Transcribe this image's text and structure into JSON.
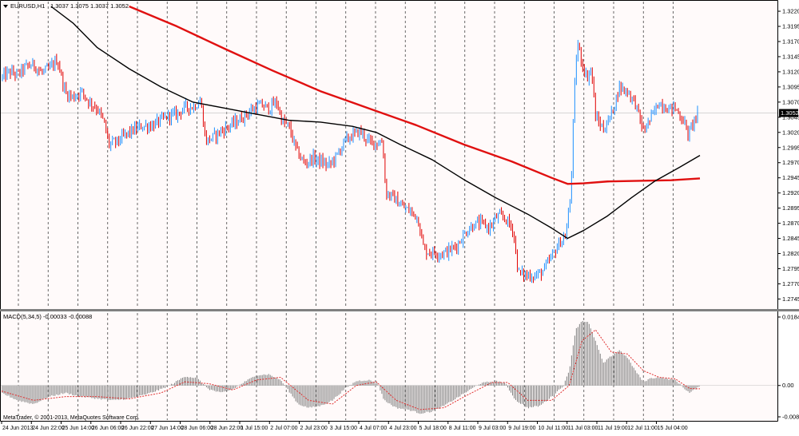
{
  "header": {
    "symbol_label": "EURUSD,H1",
    "ohlc": "1.3037 1.3075 1.3037 1.3052"
  },
  "macd_panel": {
    "label": "MACD(5,34,5) -0.00033 -0.00088"
  },
  "footer": {
    "copyright": "MetaTrader, © 2001-2013, MetaQuotes Software Corp."
  },
  "colors": {
    "background": "#ffffff",
    "price_area": "#fffafa",
    "bull_candle": "#1e90ff",
    "bear_candle": "#e00000",
    "ma_slow": "#e01010",
    "ma_fast": "#000000",
    "macd_histogram": "#808080",
    "macd_signal": "#e03030",
    "grid": "#444444",
    "current_price_box": "#000000"
  },
  "chart_data": [
    {
      "type": "candlestick",
      "symbol": "EURUSD",
      "timeframe": "H1",
      "current_price": 1.3052,
      "y_ticks": [
        "1.3220",
        "1.3195",
        "1.3170",
        "1.3145",
        "1.3120",
        "1.3095",
        "1.3070",
        "1.3045",
        "1.3020",
        "1.2995",
        "1.2970",
        "1.2945",
        "1.2920",
        "1.2895",
        "1.2870",
        "1.2845",
        "1.2820",
        "1.2795",
        "1.2770",
        "1.2745"
      ],
      "ylim": [
        1.2735,
        1.3228
      ],
      "grid_vertical": true,
      "x_ticks": [
        "24 Jun 2013",
        "24 Jun 22:00",
        "25 Jun 14:00",
        "26 Jun 06:00",
        "26 Jun 22:00",
        "27 Jun 14:00",
        "28 Jun 06:00",
        "28 Jun 22:00",
        "1 Jul 15:00",
        "2 Jul 07:00",
        "2 Jul 23:00",
        "3 Jul 15:00",
        "4 Jul 07:00",
        "4 Jul 23:00",
        "5 Jul 18:00",
        "8 Jul 11:00",
        "9 Jul 03:00",
        "9 Jul 19:00",
        "10 Jul 11:00",
        "11 Jul 03:00",
        "11 Jul 19:00",
        "12 Jul 11:00",
        "15 Jul 04:00"
      ],
      "close_path": [
        [
          0,
          1.311
        ],
        [
          10,
          1.312
        ],
        [
          20,
          1.3115
        ],
        [
          30,
          1.3128
        ],
        [
          40,
          1.3132
        ],
        [
          50,
          1.3118
        ],
        [
          60,
          1.3125
        ],
        [
          70,
          1.314
        ],
        [
          80,
          1.3085
        ],
        [
          90,
          1.3078
        ],
        [
          100,
          1.3088
        ],
        [
          110,
          1.307
        ],
        [
          120,
          1.306
        ],
        [
          128,
          1.3038
        ],
        [
          135,
          1.3
        ],
        [
          145,
          1.3005
        ],
        [
          160,
          1.302
        ],
        [
          175,
          1.303
        ],
        [
          190,
          1.3032
        ],
        [
          200,
          1.304
        ],
        [
          210,
          1.3048
        ],
        [
          220,
          1.305
        ],
        [
          230,
          1.3062
        ],
        [
          240,
          1.3062
        ],
        [
          250,
          1.3072
        ],
        [
          256,
          1.3005
        ],
        [
          265,
          1.3012
        ],
        [
          275,
          1.3022
        ],
        [
          285,
          1.303
        ],
        [
          295,
          1.3038
        ],
        [
          305,
          1.3048
        ],
        [
          315,
          1.3058
        ],
        [
          325,
          1.3065
        ],
        [
          335,
          1.306
        ],
        [
          345,
          1.307
        ],
        [
          352,
          1.3038
        ],
        [
          360,
          1.303
        ],
        [
          370,
          1.299
        ],
        [
          380,
          1.2968
        ],
        [
          390,
          1.2978
        ],
        [
          400,
          1.2972
        ],
        [
          410,
          1.2965
        ],
        [
          420,
          1.298
        ],
        [
          430,
          1.3005
        ],
        [
          440,
          1.3015
        ],
        [
          450,
          1.3022
        ],
        [
          460,
          1.3005
        ],
        [
          470,
          1.3002
        ],
        [
          478,
          1.3005
        ],
        [
          482,
          1.292
        ],
        [
          492,
          1.2912
        ],
        [
          502,
          1.2898
        ],
        [
          512,
          1.289
        ],
        [
          522,
          1.288
        ],
        [
          530,
          1.2825
        ],
        [
          540,
          1.2822
        ],
        [
          552,
          1.282
        ],
        [
          562,
          1.2825
        ],
        [
          572,
          1.2835
        ],
        [
          582,
          1.2855
        ],
        [
          592,
          1.2868
        ],
        [
          602,
          1.287
        ],
        [
          612,
          1.2862
        ],
        [
          622,
          1.2882
        ],
        [
          632,
          1.2878
        ],
        [
          642,
          1.2858
        ],
        [
          648,
          1.2788
        ],
        [
          658,
          1.2784
        ],
        [
          670,
          1.2783
        ],
        [
          680,
          1.2792
        ],
        [
          690,
          1.2815
        ],
        [
          700,
          1.2838
        ],
        [
          708,
          1.285
        ],
        [
          714,
          1.292
        ],
        [
          718,
          1.307
        ],
        [
          722,
          1.317
        ],
        [
          728,
          1.3135
        ],
        [
          734,
          1.311
        ],
        [
          740,
          1.3125
        ],
        [
          745,
          1.3045
        ],
        [
          755,
          1.3025
        ],
        [
          765,
          1.305
        ],
        [
          775,
          1.3095
        ],
        [
          785,
          1.3088
        ],
        [
          795,
          1.3068
        ],
        [
          805,
          1.3022
        ],
        [
          815,
          1.3045
        ],
        [
          825,
          1.307
        ],
        [
          835,
          1.306
        ],
        [
          845,
          1.306
        ],
        [
          855,
          1.304
        ],
        [
          862,
          1.3015
        ],
        [
          868,
          1.304
        ],
        [
          874,
          1.3052
        ]
      ],
      "series": [
        {
          "kind": "moving_average_slow",
          "points": [
            [
              160,
              1.3228
            ],
            [
              220,
              1.3195
            ],
            [
              280,
              1.3158
            ],
            [
              340,
              1.3122
            ],
            [
              400,
              1.3088
            ],
            [
              460,
              1.306
            ],
            [
              520,
              1.3032
            ],
            [
              580,
              1.3
            ],
            [
              640,
              1.2972
            ],
            [
              690,
              1.2945
            ],
            [
              710,
              1.2935
            ],
            [
              730,
              1.2936
            ],
            [
              760,
              1.2939
            ],
            [
              800,
              1.294
            ],
            [
              840,
              1.2941
            ],
            [
              876,
              1.2944
            ]
          ]
        },
        {
          "kind": "moving_average_fast",
          "points": [
            [
              62,
              1.3228
            ],
            [
              90,
              1.32
            ],
            [
              120,
              1.316
            ],
            [
              160,
              1.3125
            ],
            [
              200,
              1.3095
            ],
            [
              240,
              1.307
            ],
            [
              280,
              1.306
            ],
            [
              320,
              1.305
            ],
            [
              360,
              1.304
            ],
            [
              400,
              1.3037
            ],
            [
              440,
              1.303
            ],
            [
              470,
              1.302
            ],
            [
              500,
              1.3
            ],
            [
              540,
              1.2975
            ],
            [
              580,
              1.2942
            ],
            [
              620,
              1.2912
            ],
            [
              660,
              1.2885
            ],
            [
              690,
              1.2862
            ],
            [
              710,
              1.2845
            ],
            [
              730,
              1.2858
            ],
            [
              760,
              1.2882
            ],
            [
              790,
              1.2912
            ],
            [
              820,
              1.294
            ],
            [
              850,
              1.2962
            ],
            [
              876,
              1.2982
            ]
          ]
        }
      ]
    },
    {
      "type": "bar",
      "indicator": "MACD(5,34,5)",
      "y_ticks": [
        "0.01846",
        "0.00",
        "-0.00845"
      ],
      "ylim": [
        -0.00845,
        0.01846
      ],
      "histogram_path": [
        [
          0,
          -0.002
        ],
        [
          20,
          -0.004
        ],
        [
          40,
          -0.005
        ],
        [
          60,
          -0.003
        ],
        [
          80,
          -0.002
        ],
        [
          100,
          -0.003
        ],
        [
          120,
          -0.0035
        ],
        [
          140,
          -0.004
        ],
        [
          160,
          -0.0035
        ],
        [
          180,
          -0.0025
        ],
        [
          200,
          -0.001
        ],
        [
          215,
          0.0005
        ],
        [
          230,
          0.0025
        ],
        [
          245,
          0.002
        ],
        [
          260,
          -0.001
        ],
        [
          275,
          -0.002
        ],
        [
          290,
          -0.001
        ],
        [
          305,
          0.001
        ],
        [
          320,
          0.0028
        ],
        [
          335,
          0.003
        ],
        [
          350,
          0.0015
        ],
        [
          362,
          -0.002
        ],
        [
          372,
          -0.005
        ],
        [
          385,
          -0.006
        ],
        [
          400,
          -0.0055
        ],
        [
          415,
          -0.004
        ],
        [
          430,
          -0.001
        ],
        [
          445,
          0.0012
        ],
        [
          460,
          0.0015
        ],
        [
          472,
          0.0005
        ],
        [
          480,
          -0.004
        ],
        [
          495,
          -0.006
        ],
        [
          510,
          -0.0065
        ],
        [
          525,
          -0.0075
        ],
        [
          540,
          -0.007
        ],
        [
          555,
          -0.0055
        ],
        [
          570,
          -0.0035
        ],
        [
          585,
          -0.0015
        ],
        [
          600,
          0.0005
        ],
        [
          612,
          0.001
        ],
        [
          622,
          0.0012
        ],
        [
          632,
          0.0005
        ],
        [
          645,
          -0.004
        ],
        [
          660,
          -0.006
        ],
        [
          675,
          -0.0055
        ],
        [
          690,
          -0.003
        ],
        [
          705,
          0.0
        ],
        [
          712,
          0.004
        ],
        [
          720,
          0.015
        ],
        [
          728,
          0.0175
        ],
        [
          736,
          0.017
        ],
        [
          745,
          0.012
        ],
        [
          755,
          0.006
        ],
        [
          765,
          0.008
        ],
        [
          775,
          0.0095
        ],
        [
          785,
          0.0075
        ],
        [
          795,
          0.004
        ],
        [
          805,
          0.001
        ],
        [
          815,
          0.002
        ],
        [
          825,
          0.0022
        ],
        [
          835,
          0.0018
        ],
        [
          845,
          0.0015
        ],
        [
          855,
          -0.0005
        ],
        [
          863,
          -0.002
        ],
        [
          870,
          -0.001
        ],
        [
          876,
          -0.0003
        ]
      ],
      "signal_path": [
        [
          0,
          -0.0015
        ],
        [
          40,
          -0.004
        ],
        [
          80,
          -0.003
        ],
        [
          120,
          -0.003
        ],
        [
          160,
          -0.0036
        ],
        [
          200,
          -0.002
        ],
        [
          230,
          0.001
        ],
        [
          260,
          0.0005
        ],
        [
          290,
          -0.0012
        ],
        [
          320,
          0.0015
        ],
        [
          350,
          0.0022
        ],
        [
          385,
          -0.004
        ],
        [
          415,
          -0.005
        ],
        [
          445,
          0.0
        ],
        [
          470,
          0.001
        ],
        [
          495,
          -0.004
        ],
        [
          525,
          -0.0065
        ],
        [
          555,
          -0.006
        ],
        [
          585,
          -0.0025
        ],
        [
          615,
          0.0008
        ],
        [
          635,
          0.0008
        ],
        [
          660,
          -0.004
        ],
        [
          690,
          -0.004
        ],
        [
          712,
          0.0
        ],
        [
          728,
          0.012
        ],
        [
          745,
          0.015
        ],
        [
          765,
          0.009
        ],
        [
          785,
          0.0085
        ],
        [
          805,
          0.004
        ],
        [
          825,
          0.0022
        ],
        [
          845,
          0.0018
        ],
        [
          863,
          -0.0008
        ],
        [
          876,
          -0.0009
        ]
      ]
    }
  ]
}
